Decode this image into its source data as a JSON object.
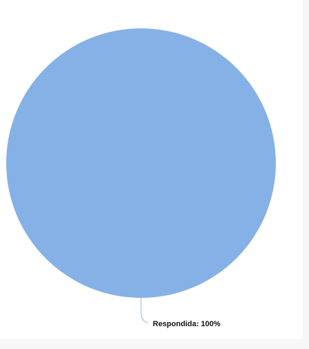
{
  "chart_data": {
    "type": "pie",
    "categories": [
      "Respondida"
    ],
    "values": [
      100
    ],
    "colors": [
      "#86b1e6"
    ],
    "leader_color": "#8fb5e2",
    "slice_labels": [
      "Respondida: 100%"
    ],
    "title": "",
    "legend": "none"
  }
}
